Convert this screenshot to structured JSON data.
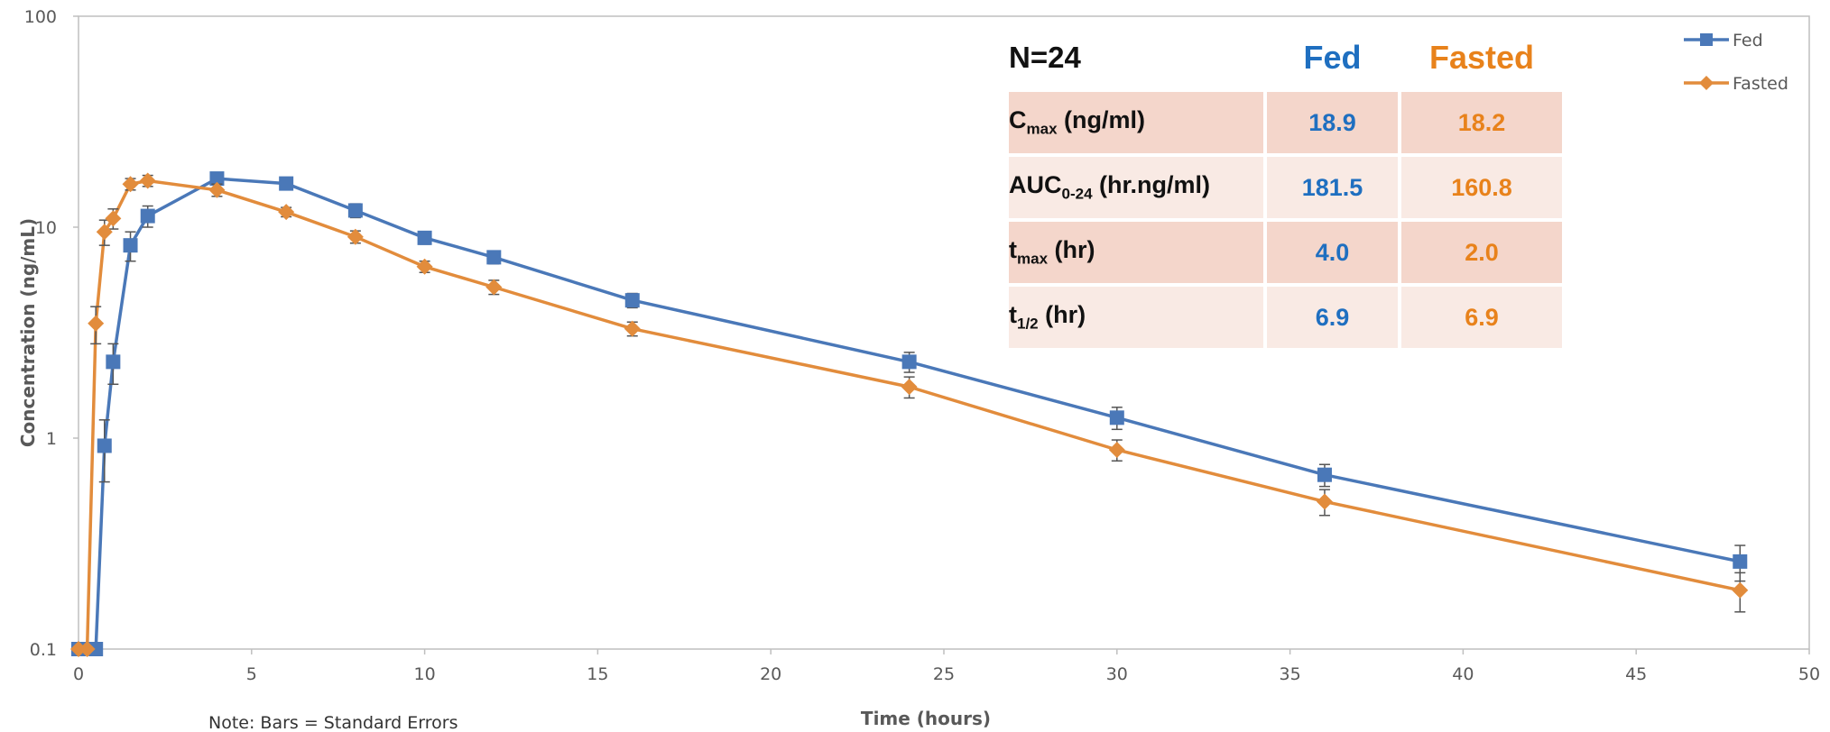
{
  "chart_data": {
    "type": "line",
    "title": "",
    "xlabel": "Time (hours)",
    "ylabel": "Concentration (ng/mL)",
    "xlim": [
      0,
      50
    ],
    "ylim": [
      0.1,
      100
    ],
    "yscale": "log",
    "x_ticks": [
      "0",
      "5",
      "10",
      "15",
      "20",
      "25",
      "30",
      "35",
      "40",
      "45",
      "50"
    ],
    "y_ticks": [
      "0.1",
      "1",
      "10",
      "100"
    ],
    "grid": false,
    "legend": "top-right",
    "note": "Note: Bars = Standard Errors",
    "colors": {
      "fed": "#4a78b8",
      "fasted": "#e28c3c"
    },
    "series": [
      {
        "name": "Fed",
        "marker": "square",
        "color": "#4a78b8",
        "x": [
          0,
          0.5,
          0.75,
          1,
          1.5,
          2,
          4,
          6,
          8,
          10,
          12,
          16,
          24,
          30,
          36,
          48
        ],
        "y": [
          0.1,
          0.1,
          0.92,
          2.3,
          8.2,
          11.3,
          17.0,
          16.1,
          12.0,
          8.9,
          7.2,
          4.5,
          2.3,
          1.25,
          0.67,
          0.26
        ],
        "se": [
          0,
          0,
          0.3,
          0.5,
          1.3,
          1.3,
          1.0,
          0.8,
          0.9,
          0.6,
          0.5,
          0.35,
          0.25,
          0.15,
          0.08,
          0.05
        ]
      },
      {
        "name": "Fasted",
        "marker": "diamond",
        "color": "#e28c3c",
        "x": [
          0,
          0.25,
          0.5,
          0.75,
          1,
          1.5,
          2,
          4,
          6,
          8,
          10,
          12,
          16,
          24,
          30,
          36,
          48
        ],
        "y": [
          0.1,
          0.1,
          3.5,
          9.5,
          11.0,
          16.0,
          16.6,
          15.0,
          11.8,
          9.0,
          6.5,
          5.2,
          3.3,
          1.75,
          0.88,
          0.5,
          0.19
        ],
        "se": [
          0,
          0,
          0.7,
          1.3,
          1.2,
          1.0,
          1.0,
          1.0,
          0.6,
          0.6,
          0.4,
          0.4,
          0.25,
          0.2,
          0.1,
          0.07,
          0.04
        ]
      }
    ]
  },
  "table": {
    "n_label": "N=24",
    "fed_header": "Fed",
    "fasted_header": "Fasted",
    "rows": [
      {
        "param": "C",
        "sub": "max",
        "unit": " (ng/ml)",
        "fed": "18.9",
        "fasted": "18.2"
      },
      {
        "param": "AUC",
        "sub": "0-24",
        "unit": " (hr.ng/ml)",
        "fed": "181.5",
        "fasted": "160.8"
      },
      {
        "param": "t",
        "sub": "max",
        "unit": " (hr)",
        "fed": "4.0",
        "fasted": "2.0"
      },
      {
        "param": "t",
        "sub": "1/2",
        "unit": " (hr)",
        "fed": "6.9",
        "fasted": "6.9"
      }
    ]
  }
}
